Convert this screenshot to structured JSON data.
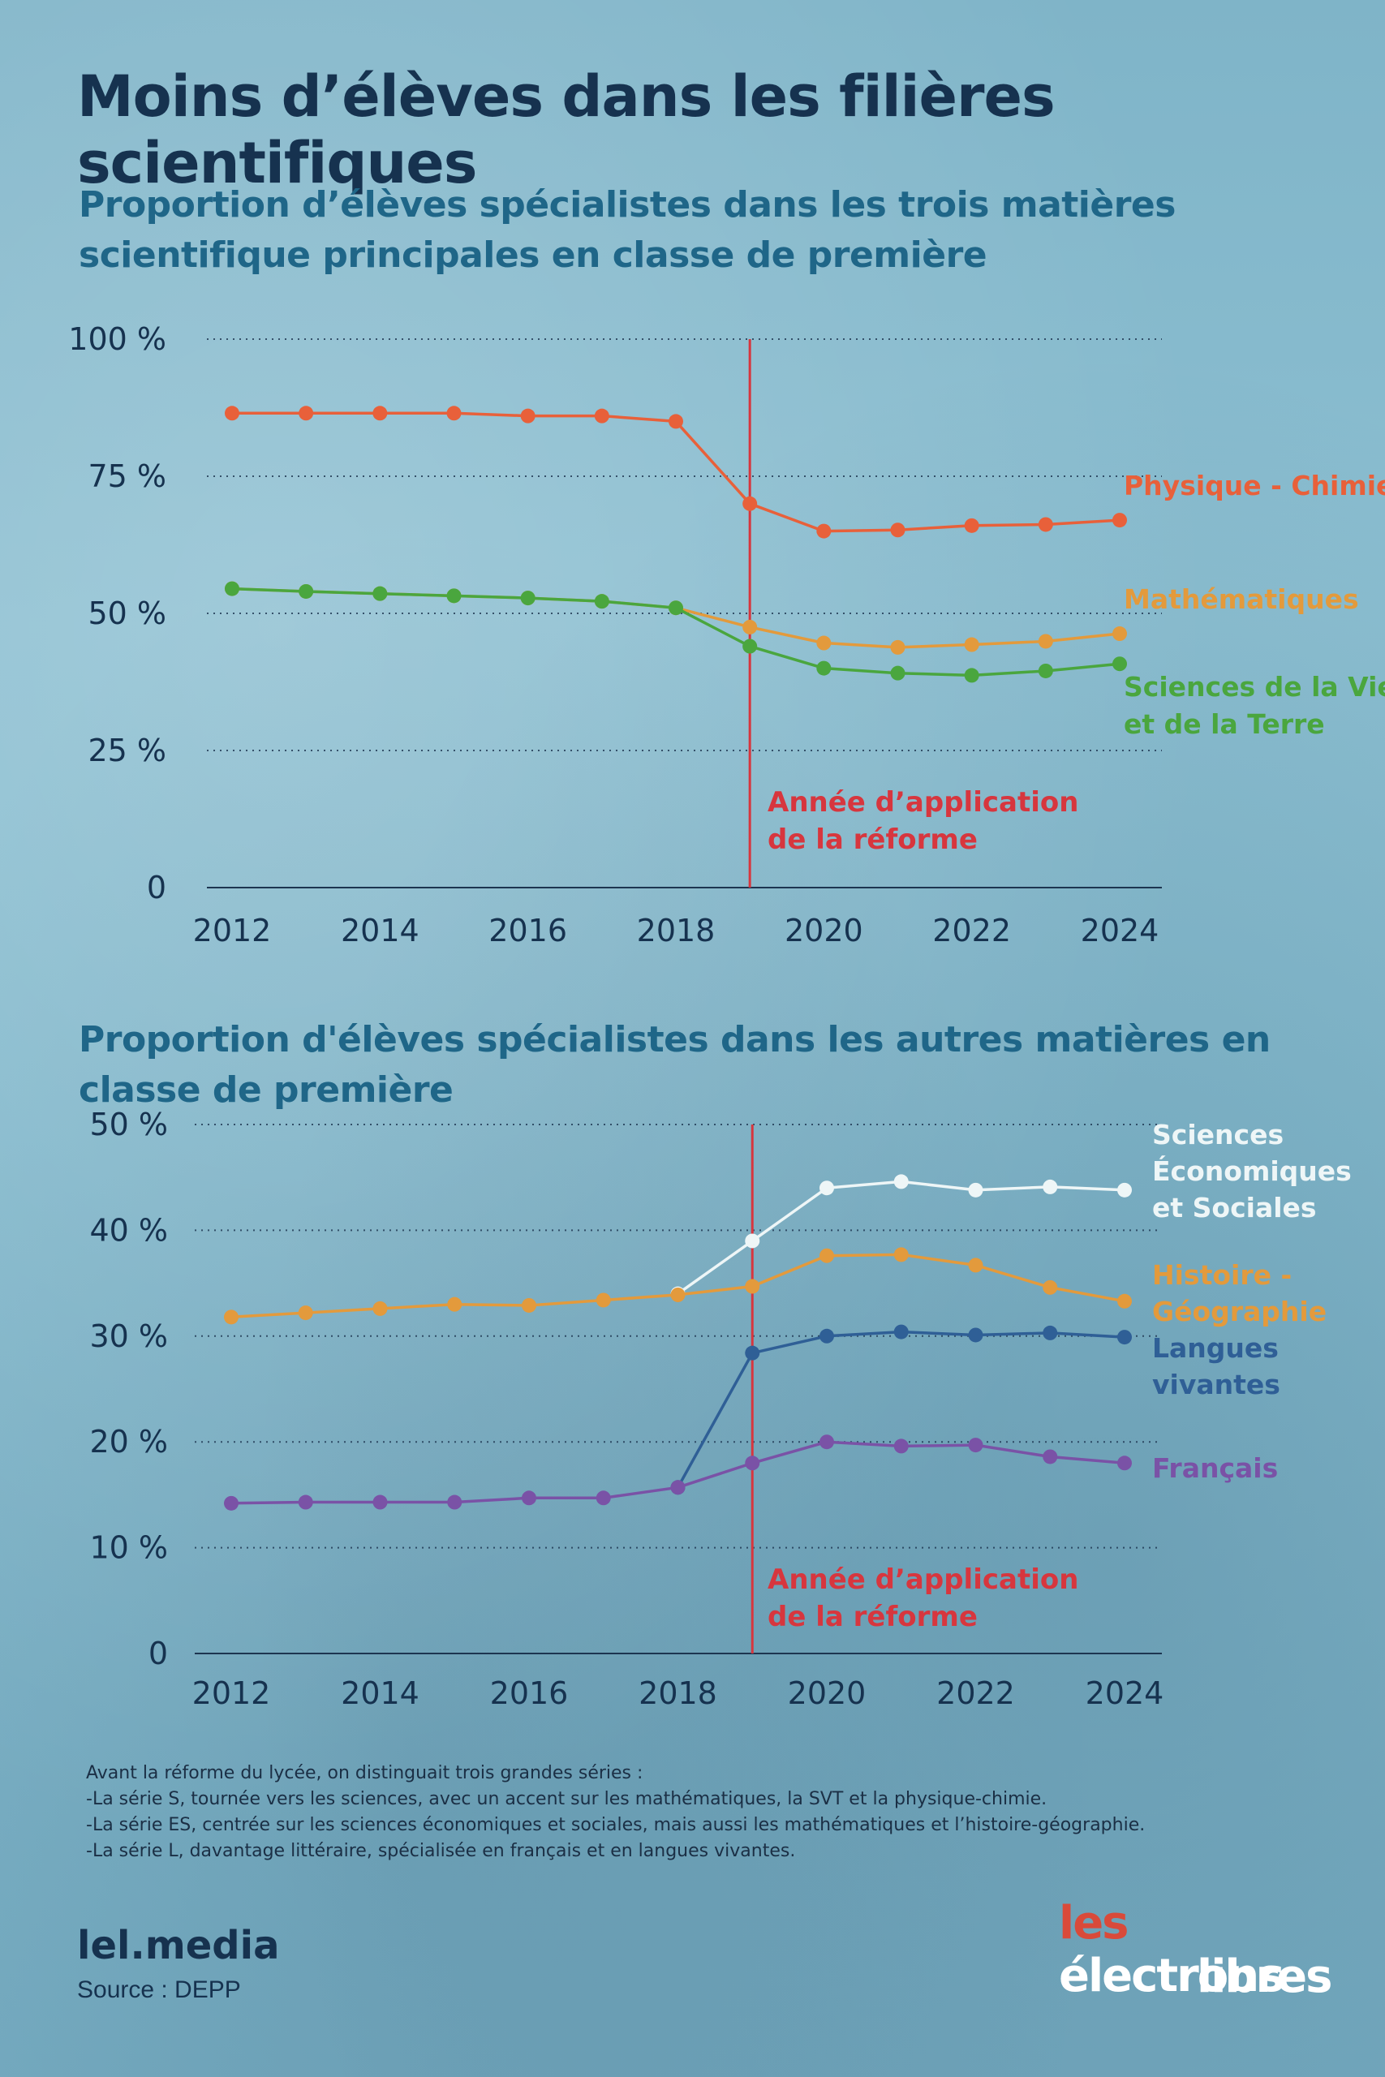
{
  "title": "Moins d’élèves dans les filières scientifiques",
  "chart_data": [
    {
      "type": "line",
      "title": "Proportion d’élèves spécialistes dans les trois matières scientifique principales en classe de première",
      "x": [
        2012,
        2013,
        2014,
        2015,
        2016,
        2017,
        2018,
        2019,
        2020,
        2021,
        2022,
        2023,
        2024
      ],
      "xticks": [
        "2012",
        "2014",
        "2016",
        "2018",
        "2020",
        "2022",
        "2024"
      ],
      "yticks": [
        "0",
        "25 %",
        "50 %",
        "75 %",
        "100 %"
      ],
      "ylim": [
        0,
        100
      ],
      "grid": "horizontal dotted",
      "series": [
        {
          "name": "Physique - Chimie",
          "color": "#e8603a",
          "label_lines": [
            "Physique - Chimie"
          ],
          "values": [
            86.5,
            86.5,
            86.5,
            86.5,
            86,
            86,
            85,
            70,
            65,
            65.2,
            66,
            66.2,
            67
          ]
        },
        {
          "name": "Mathématiques",
          "color": "#e39a3c",
          "label_lines": [
            "Mathématiques"
          ],
          "values": [
            54.5,
            54,
            53.6,
            53.2,
            52.8,
            52.2,
            51,
            47.5,
            44.6,
            43.8,
            44.3,
            44.9,
            46.3
          ]
        },
        {
          "name": "Sciences de la Vie et de la Terre",
          "color": "#4aa63e",
          "label_lines": [
            "Sciences de la Vie",
            "et de la Terre"
          ],
          "values": [
            54.5,
            54,
            53.6,
            53.2,
            52.8,
            52.2,
            51,
            44,
            40,
            39.1,
            38.7,
            39.5,
            40.8
          ]
        }
      ],
      "annotation": {
        "lines": [
          "Année d’application",
          "de la réforme"
        ],
        "x": 2019,
        "color": "#d7363e"
      }
    },
    {
      "type": "line",
      "title": "Proportion d'élèves spécialistes dans les autres matières en classe de première",
      "x": [
        2012,
        2013,
        2014,
        2015,
        2016,
        2017,
        2018,
        2019,
        2020,
        2021,
        2022,
        2023,
        2024
      ],
      "xticks": [
        "2012",
        "2014",
        "2016",
        "2018",
        "2020",
        "2022",
        "2024"
      ],
      "yticks": [
        "0",
        "10 %",
        "20 %",
        "30 %",
        "40 %",
        "50 %"
      ],
      "ylim": [
        0,
        50
      ],
      "grid": "horizontal dotted",
      "series": [
        {
          "name": "Sciences Économiques et Sociales",
          "color": "#eef6f7",
          "label_lines": [
            "Sciences",
            "Économiques",
            "et Sociales"
          ],
          "values": [
            null,
            null,
            null,
            null,
            null,
            null,
            34,
            39,
            44,
            44.6,
            43.8,
            44.1,
            43.8
          ]
        },
        {
          "name": "Histoire - Géographie",
          "color": "#e39a3c",
          "label_lines": [
            "Histoire -",
            "Géographie"
          ],
          "values": [
            31.8,
            32.2,
            32.6,
            33,
            32.9,
            33.4,
            33.9,
            34.7,
            37.6,
            37.7,
            36.7,
            34.6,
            33.3
          ]
        },
        {
          "name": "Langues vivantes",
          "color": "#2f5f96",
          "label_lines": [
            "Langues",
            "vivantes"
          ],
          "values": [
            null,
            null,
            null,
            null,
            null,
            null,
            15.7,
            28.4,
            30,
            30.4,
            30.1,
            30.3,
            29.9
          ]
        },
        {
          "name": "Français",
          "color": "#7a52a6",
          "label_lines": [
            "Français"
          ],
          "values": [
            14.2,
            14.3,
            14.3,
            14.3,
            14.7,
            14.7,
            15.7,
            18,
            20,
            19.6,
            19.7,
            18.6,
            18
          ]
        }
      ],
      "annotation": {
        "lines": [
          "Année d’application",
          "de la réforme"
        ],
        "x": 2019,
        "color": "#d7363e"
      }
    }
  ],
  "notes": [
    "Avant la réforme du lycée, on distinguait trois grandes séries :",
    "-La série S, tournée vers les sciences, avec un accent sur les mathématiques, la SVT et la physique-chimie.",
    "-La série ES, centrée sur les sciences économiques et sociales, mais aussi les mathématiques et l’histoire-géographie.",
    "-La série L, davantage littéraire, spécialisée en français et en langues vivantes."
  ],
  "brand": "lel.media",
  "source": "Source : DEPP",
  "logo": {
    "line1_prefix": "les",
    "line1_rest": " électrons",
    "line2": "libres",
    "prefix_color": "#d94a3a"
  }
}
